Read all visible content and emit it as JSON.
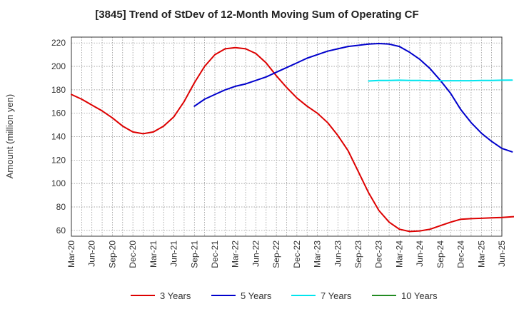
{
  "chart_data": {
    "type": "line",
    "title": "[3845]  Trend of StDev of 12-Month Moving Sum of Operating CF",
    "xlabel": "",
    "ylabel": "Amount (million yen)",
    "ylim": [
      55,
      225
    ],
    "yticks": [
      60,
      80,
      100,
      120,
      140,
      160,
      180,
      200,
      220
    ],
    "grid": true,
    "legend_position": "bottom",
    "x_tick_labels": [
      "Mar-20",
      "Jun-20",
      "Sep-20",
      "Dec-20",
      "Mar-21",
      "Jun-21",
      "Sep-21",
      "Dec-21",
      "Mar-22",
      "Jun-22",
      "Sep-22",
      "Dec-22",
      "Mar-23",
      "Jun-23",
      "Sep-23",
      "Dec-23",
      "Mar-24",
      "Jun-24",
      "Sep-24",
      "Dec-24",
      "Mar-25",
      "Jun-25"
    ],
    "series": [
      {
        "name": "3 Years",
        "color": "#dd0000",
        "points": [
          [
            0,
            176
          ],
          [
            1,
            172
          ],
          [
            2,
            167
          ],
          [
            3,
            162
          ],
          [
            4,
            156
          ],
          [
            5,
            149
          ],
          [
            6,
            144
          ],
          [
            7,
            142.5
          ],
          [
            8,
            144
          ],
          [
            9,
            149
          ],
          [
            10,
            157
          ],
          [
            11,
            170
          ],
          [
            12,
            186
          ],
          [
            13,
            200
          ],
          [
            14,
            210
          ],
          [
            15,
            215
          ],
          [
            16,
            216
          ],
          [
            17,
            215
          ],
          [
            18,
            211
          ],
          [
            19,
            203
          ],
          [
            20,
            192
          ],
          [
            21,
            182
          ],
          [
            22,
            173
          ],
          [
            23,
            166
          ],
          [
            24,
            160
          ],
          [
            25,
            152
          ],
          [
            26,
            141
          ],
          [
            27,
            128
          ],
          [
            28,
            110
          ],
          [
            29,
            92
          ],
          [
            30,
            77
          ],
          [
            31,
            67
          ],
          [
            32,
            61
          ],
          [
            33,
            59
          ],
          [
            34,
            59.5
          ],
          [
            35,
            61
          ],
          [
            36,
            64
          ],
          [
            37,
            67
          ],
          [
            38,
            69.5
          ],
          [
            39,
            70
          ],
          [
            40,
            70.3
          ],
          [
            41,
            70.7
          ],
          [
            42,
            71
          ],
          [
            43,
            71.6
          ],
          [
            44,
            72.2
          ]
        ]
      },
      {
        "name": "5 Years",
        "color": "#0000cc",
        "points": [
          [
            12,
            166
          ],
          [
            13,
            172
          ],
          [
            14,
            176
          ],
          [
            15,
            180
          ],
          [
            16,
            183
          ],
          [
            17,
            185
          ],
          [
            18,
            188
          ],
          [
            19,
            191
          ],
          [
            20,
            195
          ],
          [
            21,
            199
          ],
          [
            22,
            203
          ],
          [
            23,
            207
          ],
          [
            24,
            210
          ],
          [
            25,
            213
          ],
          [
            26,
            215
          ],
          [
            27,
            217
          ],
          [
            28,
            218
          ],
          [
            29,
            219
          ],
          [
            30,
            219.5
          ],
          [
            31,
            219
          ],
          [
            32,
            217
          ],
          [
            33,
            212
          ],
          [
            34,
            206
          ],
          [
            35,
            198
          ],
          [
            36,
            188
          ],
          [
            37,
            177
          ],
          [
            38,
            163
          ],
          [
            39,
            152
          ],
          [
            40,
            143
          ],
          [
            41,
            136
          ],
          [
            42,
            130
          ],
          [
            43,
            127
          ]
        ]
      },
      {
        "name": "7 Years",
        "color": "#00e5ee",
        "points": [
          [
            29,
            187.5
          ],
          [
            30,
            188
          ],
          [
            31,
            188
          ],
          [
            32,
            188.2
          ],
          [
            33,
            188
          ],
          [
            34,
            188
          ],
          [
            35,
            187.8
          ],
          [
            36,
            187.8
          ],
          [
            37,
            187.8
          ],
          [
            38,
            187.8
          ],
          [
            39,
            187.8
          ],
          [
            40,
            188
          ],
          [
            41,
            188
          ],
          [
            42,
            188.2
          ],
          [
            43,
            188.3
          ]
        ]
      },
      {
        "name": "10 Years",
        "color": "#228b22",
        "points": []
      }
    ]
  }
}
